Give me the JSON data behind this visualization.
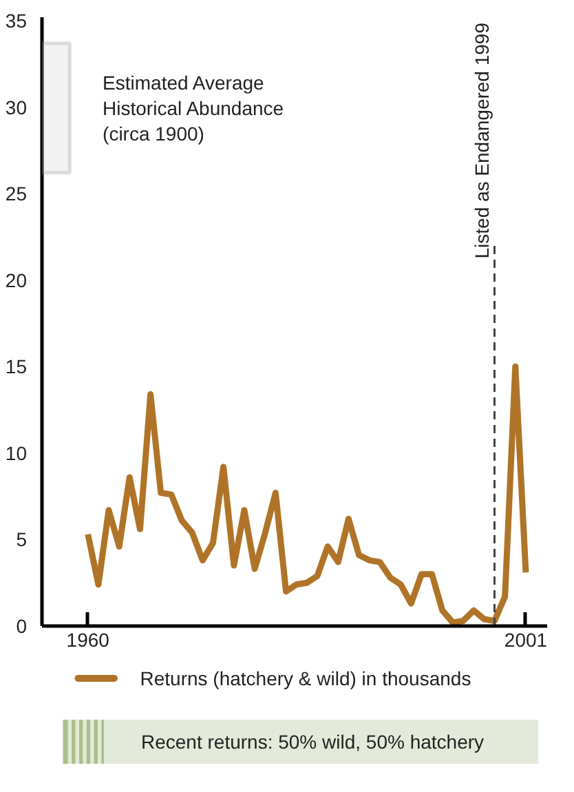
{
  "chart_data": {
    "type": "line",
    "x": [
      1960.0,
      1960.98,
      1961.95,
      1962.93,
      1963.9,
      1964.88,
      1965.86,
      1966.83,
      1967.81,
      1968.79,
      1969.76,
      1970.74,
      1971.71,
      1972.69,
      1973.67,
      1974.64,
      1975.62,
      1976.6,
      1977.57,
      1978.55,
      1979.52,
      1980.5,
      1981.48,
      1982.45,
      1983.43,
      1984.4,
      1985.38,
      1986.36,
      1987.33,
      1988.31,
      1989.29,
      1990.26,
      1991.24,
      1992.21,
      1993.19,
      1994.17,
      1995.14,
      1996.12,
      1997.1,
      1998.07,
      1999.05,
      2000.02,
      2001.0
    ],
    "series": [
      {
        "name": "Returns (hatchery & wild) in thousands",
        "color": "#b07428",
        "values": [
          5.3,
          2.4,
          6.7,
          4.6,
          8.6,
          5.6,
          13.4,
          7.7,
          7.6,
          6.1,
          5.4,
          3.8,
          4.8,
          9.2,
          3.5,
          6.7,
          3.3,
          5.4,
          7.7,
          2.0,
          2.4,
          2.5,
          2.9,
          4.6,
          3.7,
          6.2,
          4.1,
          3.8,
          3.7,
          2.8,
          2.4,
          1.3,
          3.0,
          3.0,
          0.9,
          0.2,
          0.3,
          0.9,
          0.4,
          0.3,
          1.7,
          15.0,
          3.1
        ]
      }
    ],
    "xlim": [
      1955.7,
      2003
    ],
    "xticks": [
      1960,
      2001
    ],
    "ylim": [
      0,
      35.2
    ],
    "yticks": [
      0,
      5,
      10,
      15,
      20,
      25,
      30,
      35
    ],
    "grid": false,
    "legend": "bottom",
    "marker": "none",
    "line_style": "solid",
    "ref_lines": [
      {
        "axis": "x",
        "value": 1998.07,
        "label": "Listed as Endangered 1999",
        "color": "#444444",
        "line_style": "dashed"
      }
    ],
    "bands": [
      {
        "axis": "y",
        "from": 26.2,
        "to": 33.7,
        "label": "Estimated Average\nHistorical Abundance\n(circa 1900)",
        "color": "#999999"
      }
    ],
    "annotations": [
      "Recent returns:  50% wild, 50% hatchery"
    ]
  }
}
